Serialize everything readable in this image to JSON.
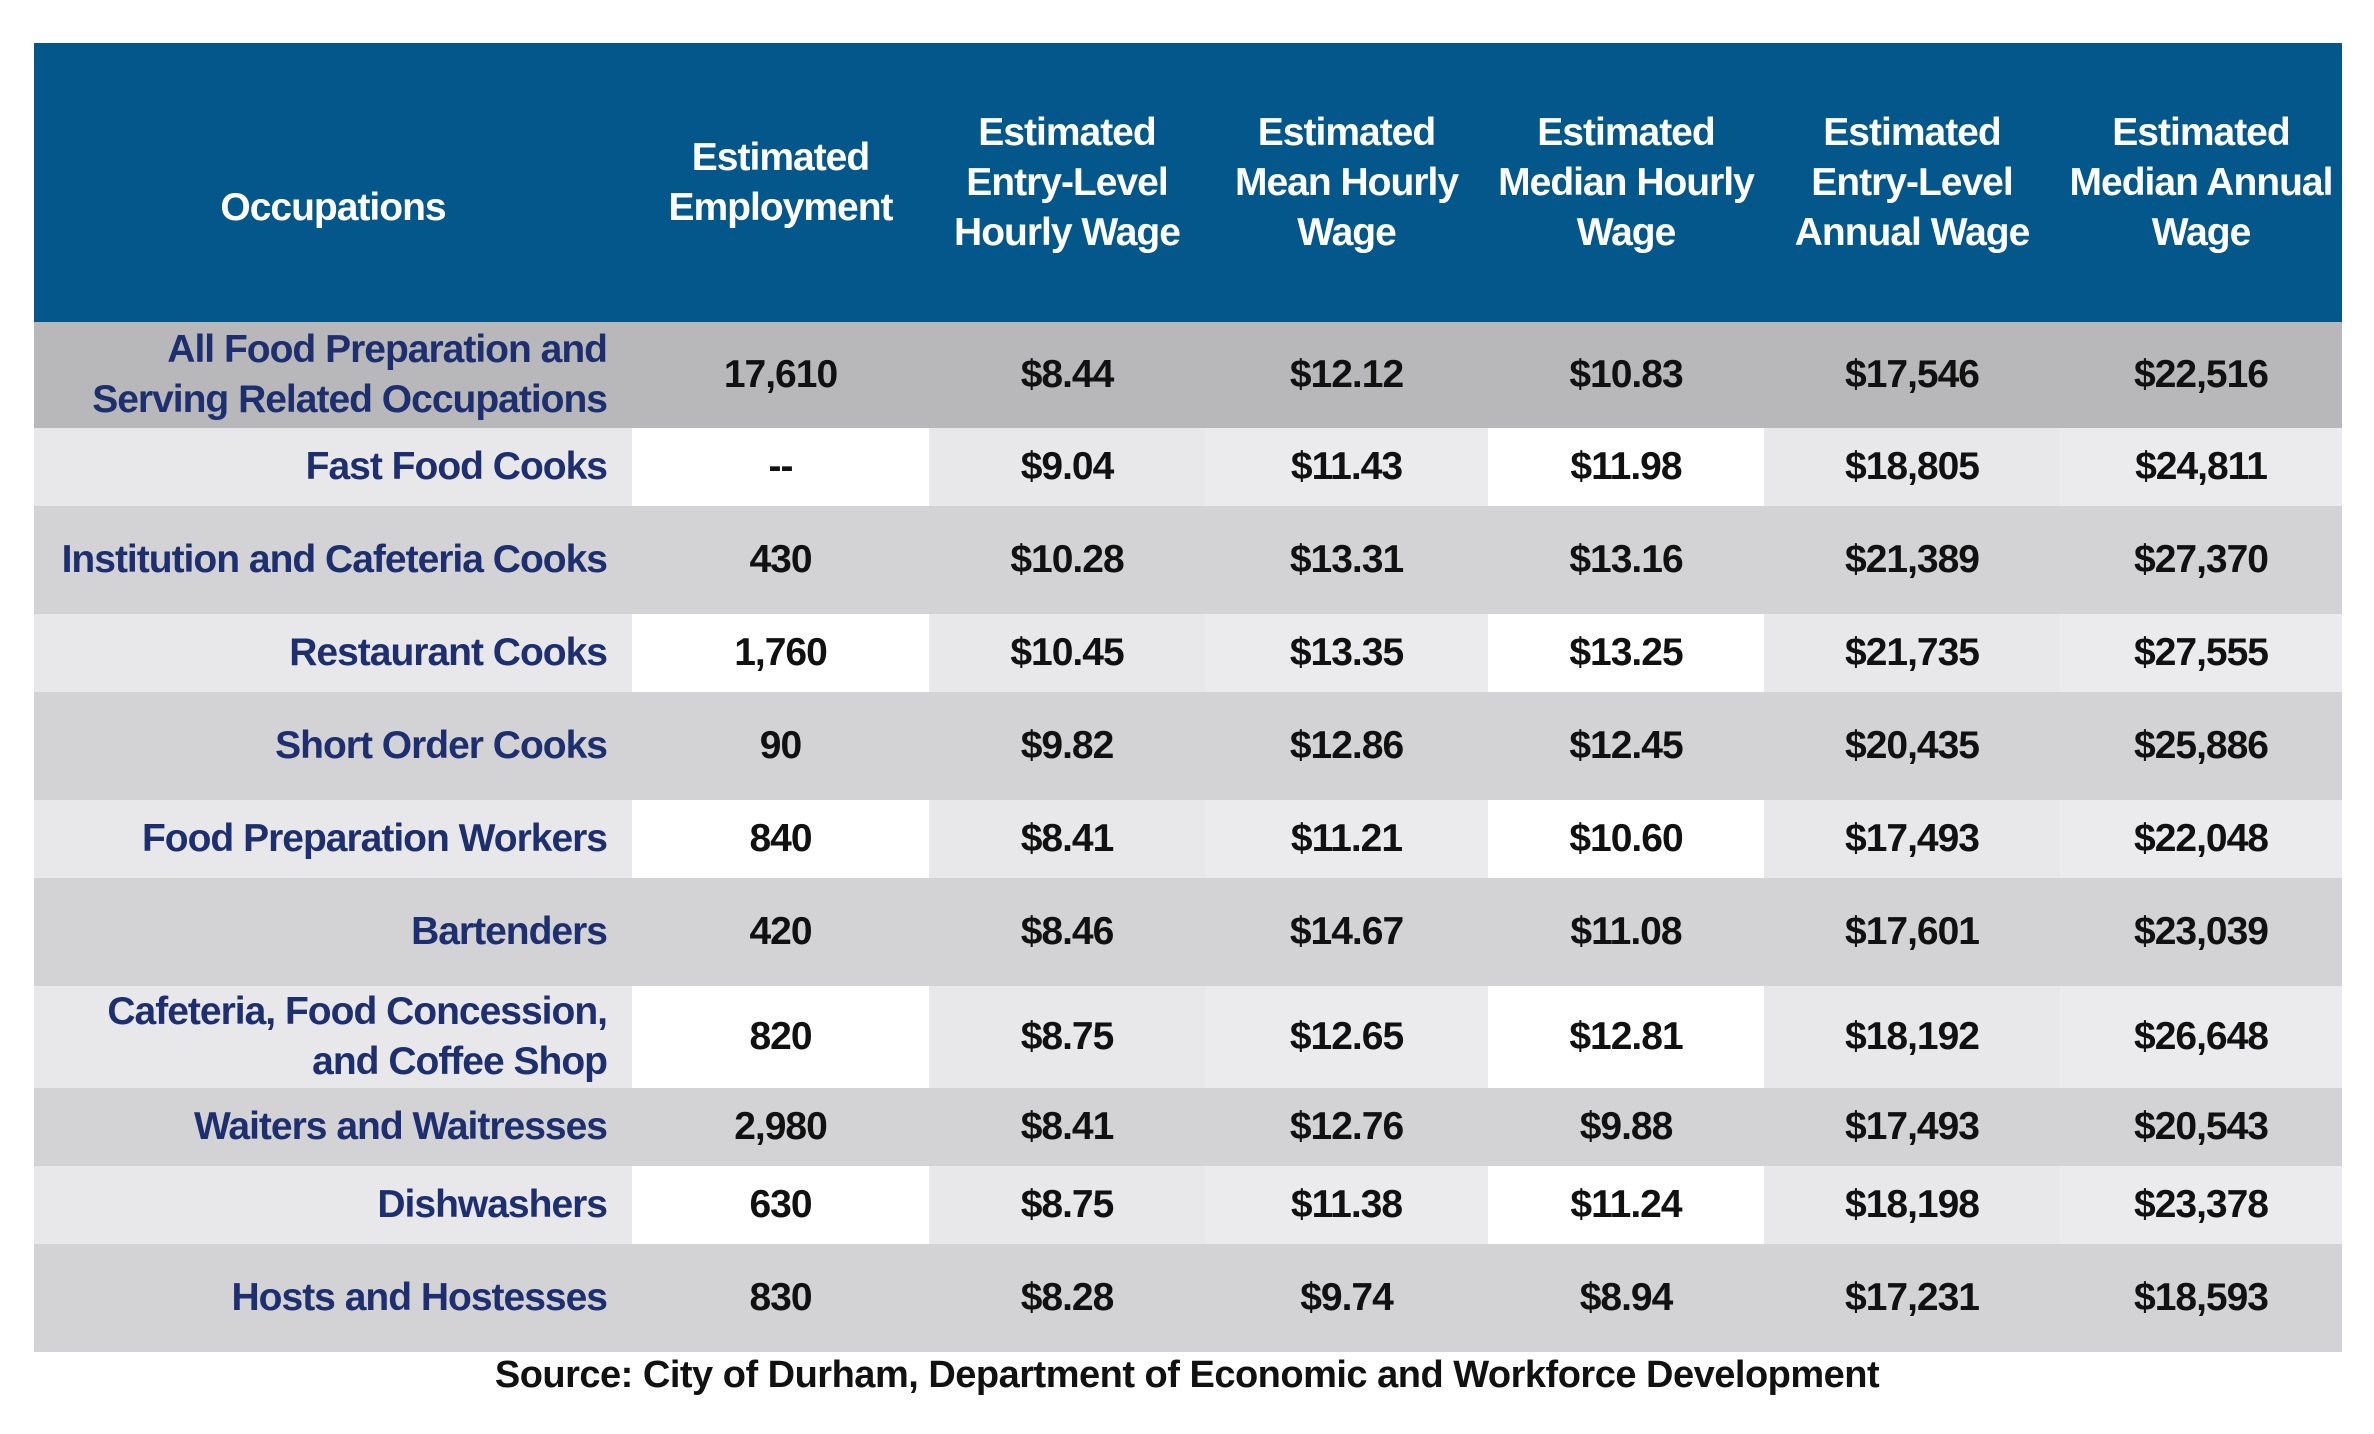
{
  "chart_data": {
    "type": "table",
    "columns": [
      "Occupations",
      "Estimated Employment",
      "Estimated Entry-Level Hourly Wage",
      "Estimated Mean Hourly Wage",
      "Estimated Median Hourly Wage",
      "Estimated Entry-Level Annual Wage",
      "Estimated Median Annual Wage"
    ],
    "header_lines": [
      [
        "Occupations"
      ],
      [
        "Estimated",
        "Employment"
      ],
      [
        "Estimated",
        "Entry-Level",
        "Hourly Wage"
      ],
      [
        "Estimated",
        "Mean Hourly",
        "Wage"
      ],
      [
        "Estimated",
        "Median Hourly",
        "Wage"
      ],
      [
        "Estimated",
        "Entry-Level",
        "Annual Wage"
      ],
      [
        "Estimated",
        "Median Annual",
        "Wage"
      ]
    ],
    "rows": [
      {
        "occupation_lines": [
          "All Food Preparation and",
          "Serving Related Occupations"
        ],
        "employment": "17,610",
        "entry_hourly": "$8.44",
        "mean_hourly": "$12.12",
        "median_hourly": "$10.83",
        "entry_annual": "$17,546",
        "median_annual": "$22,516"
      },
      {
        "occupation_lines": [
          "Fast Food Cooks"
        ],
        "employment": "--",
        "entry_hourly": "$9.04",
        "mean_hourly": "$11.43",
        "median_hourly": "$11.98",
        "entry_annual": "$18,805",
        "median_annual": "$24,811"
      },
      {
        "occupation_lines": [
          "Institution and Cafeteria Cooks"
        ],
        "employment": "430",
        "entry_hourly": "$10.28",
        "mean_hourly": "$13.31",
        "median_hourly": "$13.16",
        "entry_annual": "$21,389",
        "median_annual": "$27,370"
      },
      {
        "occupation_lines": [
          "Restaurant Cooks"
        ],
        "employment": "1,760",
        "entry_hourly": "$10.45",
        "mean_hourly": "$13.35",
        "median_hourly": "$13.25",
        "entry_annual": "$21,735",
        "median_annual": "$27,555"
      },
      {
        "occupation_lines": [
          "Short Order Cooks"
        ],
        "employment": "90",
        "entry_hourly": "$9.82",
        "mean_hourly": "$12.86",
        "median_hourly": "$12.45",
        "entry_annual": "$20,435",
        "median_annual": "$25,886"
      },
      {
        "occupation_lines": [
          "Food Preparation Workers"
        ],
        "employment": "840",
        "entry_hourly": "$8.41",
        "mean_hourly": "$11.21",
        "median_hourly": "$10.60",
        "entry_annual": "$17,493",
        "median_annual": "$22,048"
      },
      {
        "occupation_lines": [
          "Bartenders"
        ],
        "employment": "420",
        "entry_hourly": "$8.46",
        "mean_hourly": "$14.67",
        "median_hourly": "$11.08",
        "entry_annual": "$17,601",
        "median_annual": "$23,039"
      },
      {
        "occupation_lines": [
          "Cafeteria, Food Concession,",
          "and Coffee Shop"
        ],
        "employment": "820",
        "entry_hourly": "$8.75",
        "mean_hourly": "$12.65",
        "median_hourly": "$12.81",
        "entry_annual": "$18,192",
        "median_annual": "$26,648"
      },
      {
        "occupation_lines": [
          "Waiters and Waitresses"
        ],
        "employment": "2,980",
        "entry_hourly": "$8.41",
        "mean_hourly": "$12.76",
        "median_hourly": "$9.88",
        "entry_annual": "$17,493",
        "median_annual": "$20,543"
      },
      {
        "occupation_lines": [
          "Dishwashers"
        ],
        "employment": "630",
        "entry_hourly": "$8.75",
        "mean_hourly": "$11.38",
        "median_hourly": "$11.24",
        "entry_annual": "$18,198",
        "median_annual": "$23,378"
      },
      {
        "occupation_lines": [
          "Hosts and Hostesses"
        ],
        "employment": "830",
        "entry_hourly": "$8.28",
        "mean_hourly": "$9.74",
        "median_hourly": "$8.94",
        "entry_annual": "$17,231",
        "median_annual": "$18,593"
      }
    ],
    "source": "Source: City of Durham, Department of Economic and Workforce Development",
    "colors": {
      "header_bg": "#03578b",
      "header_text": "#ffffff",
      "occupation_text": "#1d2f6f",
      "value_text": "#111111",
      "first_row_bg": "#b8b8ba",
      "dark_row_bg": "#d3d3d5",
      "light_row_bg": "#e8e8ea"
    }
  }
}
